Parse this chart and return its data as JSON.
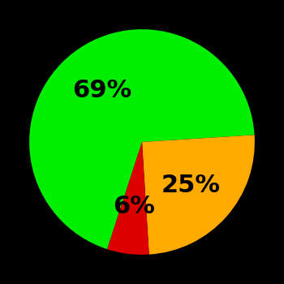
{
  "slices": [
    69,
    25,
    6
  ],
  "labels": [
    "69%",
    "25%",
    "6%"
  ],
  "colors": [
    "#00ee00",
    "#ffaa00",
    "#dd0000"
  ],
  "background_color": "#000000",
  "startangle": -108,
  "counterclock": false,
  "text_color": "#000000",
  "label_fontsize": 22,
  "label_fontweight": "bold",
  "label_r": 0.58
}
